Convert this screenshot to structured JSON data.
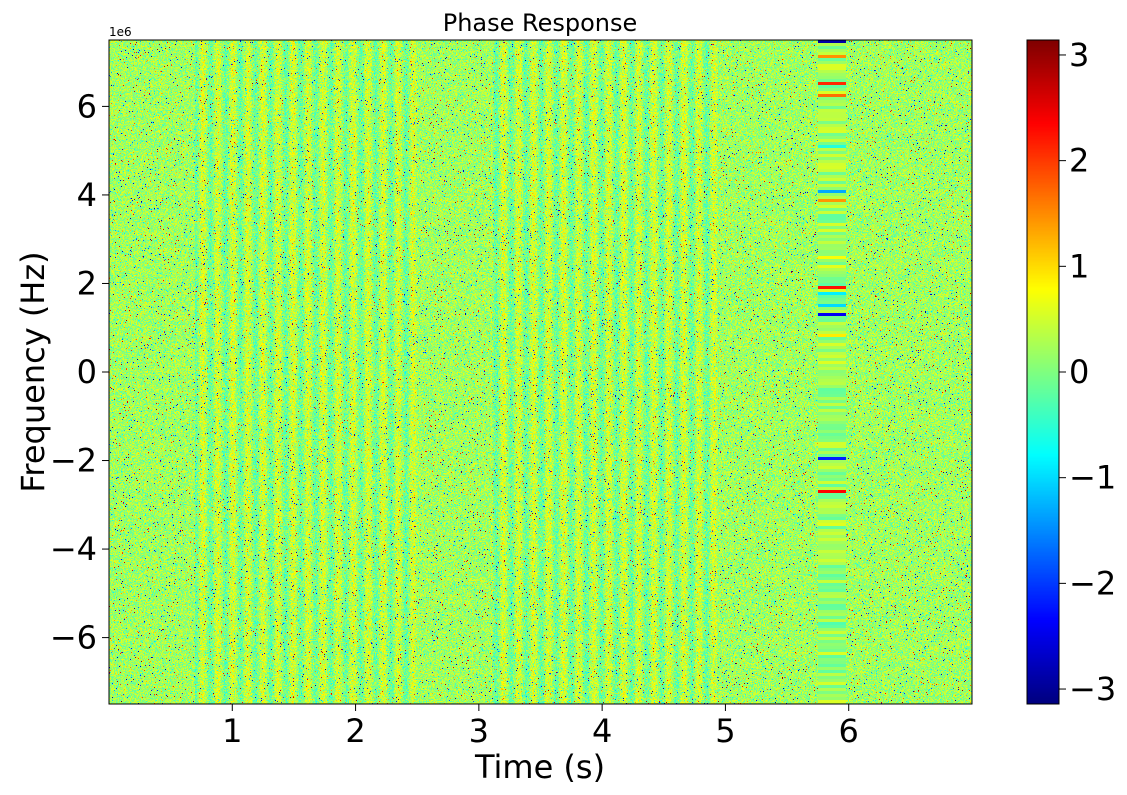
{
  "chart_data": {
    "type": "heatmap",
    "title": "Phase Response",
    "xlabel": "Time (s)",
    "ylabel": "Frequency (Hz)",
    "y_offset_label": "1e6",
    "xlim": [
      0.0,
      7.0
    ],
    "ylim": [
      -7.5,
      7.5
    ],
    "x_ticks": [
      1,
      2,
      3,
      4,
      5,
      6
    ],
    "x_tick_labels": [
      "1",
      "2",
      "3",
      "4",
      "5",
      "6"
    ],
    "y_ticks": [
      -6,
      -4,
      -2,
      0,
      2,
      4,
      6
    ],
    "y_tick_labels": [
      "−6",
      "−4",
      "−2",
      "0",
      "2",
      "4",
      "6"
    ],
    "colormap": "jet",
    "value_range": [
      -3.14159,
      3.14159
    ],
    "colorbar_ticks": [
      -3,
      -2,
      -1,
      0,
      1,
      2,
      3
    ],
    "colorbar_tick_labels": [
      "−3",
      "−2",
      "−1",
      "0",
      "1",
      "2",
      "3"
    ],
    "typical_phase": 0.2,
    "regions": [
      {
        "t_start": 0.0,
        "t_end": 0.7,
        "pattern": "noise"
      },
      {
        "t_start": 0.7,
        "t_end": 2.5,
        "pattern": "vertical stripes"
      },
      {
        "t_start": 2.5,
        "t_end": 3.1,
        "pattern": "noise"
      },
      {
        "t_start": 3.1,
        "t_end": 4.95,
        "pattern": "vertical stripes"
      },
      {
        "t_start": 4.95,
        "t_end": 5.75,
        "pattern": "noise"
      },
      {
        "t_start": 5.75,
        "t_end": 5.98,
        "pattern": "horizontal bands"
      },
      {
        "t_start": 5.98,
        "t_end": 7.0,
        "pattern": "noise"
      }
    ]
  }
}
